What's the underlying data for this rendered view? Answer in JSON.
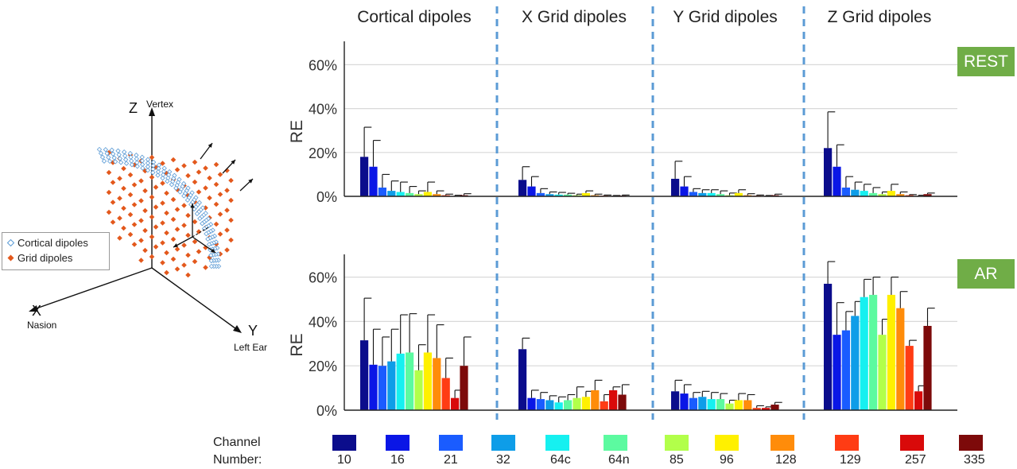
{
  "columns": [
    "Cortical dipoles",
    "X Grid dipoles",
    "Y Grid dipoles",
    "Z Grid dipoles"
  ],
  "conditions": [
    "REST",
    "AR"
  ],
  "colors": {
    "badge": "#70ad47",
    "divider": "#5b9bd5",
    "cortical_marker": "#5b9bd5",
    "grid_marker": "#e3581c"
  },
  "head_model": {
    "axis_z": "Z",
    "axis_z_sub": "Vertex",
    "axis_x": "X",
    "axis_x_sub": "Nasion",
    "axis_y": "Y",
    "axis_y_sub": "Left Ear",
    "legend": [
      {
        "label": "Cortical dipoles",
        "marker": "open-diamond"
      },
      {
        "label": "Grid dipoles",
        "marker": "filled-diamond"
      }
    ]
  },
  "channel_legend": {
    "title": "Channel Number:",
    "channels": [
      {
        "label": "10",
        "color": "#0b0d8c"
      },
      {
        "label": "16",
        "color": "#0a16e6"
      },
      {
        "label": "21",
        "color": "#1a5cff"
      },
      {
        "label": "32",
        "color": "#0e9de8"
      },
      {
        "label": "64c",
        "color": "#16f0f0"
      },
      {
        "label": "64n",
        "color": "#5cfaa0"
      },
      {
        "label": "85",
        "color": "#b2ff4a"
      },
      {
        "label": "96",
        "color": "#fff000"
      },
      {
        "label": "128",
        "color": "#ff8c0a"
      },
      {
        "label": "129",
        "color": "#ff3c14"
      },
      {
        "label": "257",
        "color": "#d90a0a"
      },
      {
        "label": "335",
        "color": "#7d0a0a"
      }
    ]
  },
  "chart_data": {
    "type": "bar",
    "ylabel": "RE",
    "ytick_labels": [
      "0%",
      "20%",
      "40%",
      "60%"
    ],
    "ylim": [
      0,
      70
    ],
    "grid": true,
    "categories": [
      "10",
      "16",
      "21",
      "32",
      "64c",
      "64n",
      "85",
      "96",
      "128",
      "129",
      "257",
      "335"
    ],
    "panels": [
      {
        "condition": "REST",
        "column": "Cortical dipoles",
        "values": [
          18,
          13.5,
          4,
          2.5,
          2,
          1.5,
          1,
          2,
          1,
          0.5,
          0.2,
          0.5
        ],
        "errors": [
          13.5,
          12,
          6,
          4.5,
          4.5,
          3,
          1.5,
          4.5,
          1.5,
          0.5,
          0.3,
          0.7
        ]
      },
      {
        "condition": "REST",
        "column": "X Grid dipoles",
        "values": [
          7.5,
          4.5,
          1.5,
          1,
          0.8,
          0.8,
          0.5,
          1.5,
          0.5,
          0.3,
          0.2,
          0.3
        ],
        "errors": [
          6,
          4.5,
          2,
          1,
          1,
          0.6,
          0.5,
          1,
          0.5,
          0.3,
          0.2,
          0.3
        ]
      },
      {
        "condition": "REST",
        "column": "Y Grid dipoles",
        "values": [
          8,
          4.5,
          2,
          1.5,
          1.5,
          1,
          0.5,
          1.5,
          0.5,
          0.3,
          0.2,
          0.5
        ],
        "errors": [
          8,
          4.5,
          1.5,
          1.5,
          1.5,
          1.5,
          1,
          1.5,
          0.7,
          0.3,
          0.2,
          0.5
        ]
      },
      {
        "condition": "REST",
        "column": "Z Grid dipoles",
        "values": [
          22,
          13.5,
          4,
          3,
          2.5,
          1.5,
          1,
          2.5,
          1,
          0.5,
          0.2,
          1
        ],
        "errors": [
          16.5,
          10,
          5,
          3.5,
          3,
          2.5,
          1,
          3,
          1,
          0.3,
          0.3,
          0.5
        ]
      },
      {
        "condition": "AR",
        "column": "Cortical dipoles",
        "values": [
          31.5,
          20.5,
          20,
          22,
          25.5,
          26,
          18,
          26,
          23.5,
          14.5,
          5.5,
          20
        ],
        "errors": [
          19,
          16,
          13,
          14.5,
          17.5,
          17.5,
          11.5,
          17,
          15,
          9,
          3.5,
          13
        ]
      },
      {
        "condition": "AR",
        "column": "X Grid dipoles",
        "values": [
          27.5,
          5.5,
          5,
          4.5,
          3.5,
          4.5,
          5.5,
          6,
          9,
          4,
          9,
          7
        ],
        "errors": [
          5,
          3.5,
          3,
          2,
          2.5,
          2.5,
          5,
          2.5,
          4.5,
          3,
          1.5,
          4.5
        ]
      },
      {
        "condition": "AR",
        "column": "Y Grid dipoles",
        "values": [
          8.5,
          7.5,
          5.5,
          6,
          5,
          5,
          3,
          4.5,
          4.5,
          1,
          1,
          2.5
        ],
        "errors": [
          5,
          4,
          2.5,
          2.5,
          3,
          2.5,
          1.5,
          3,
          2.5,
          1,
          0.5,
          1
        ]
      },
      {
        "condition": "AR",
        "column": "Z Grid dipoles",
        "values": [
          57,
          34,
          36,
          42.5,
          51,
          52,
          34,
          52,
          46,
          29,
          8.5,
          38
        ],
        "errors": [
          10,
          14.5,
          8.5,
          6.5,
          8,
          8,
          7,
          8,
          7.5,
          2.5,
          2.5,
          8
        ]
      }
    ]
  }
}
